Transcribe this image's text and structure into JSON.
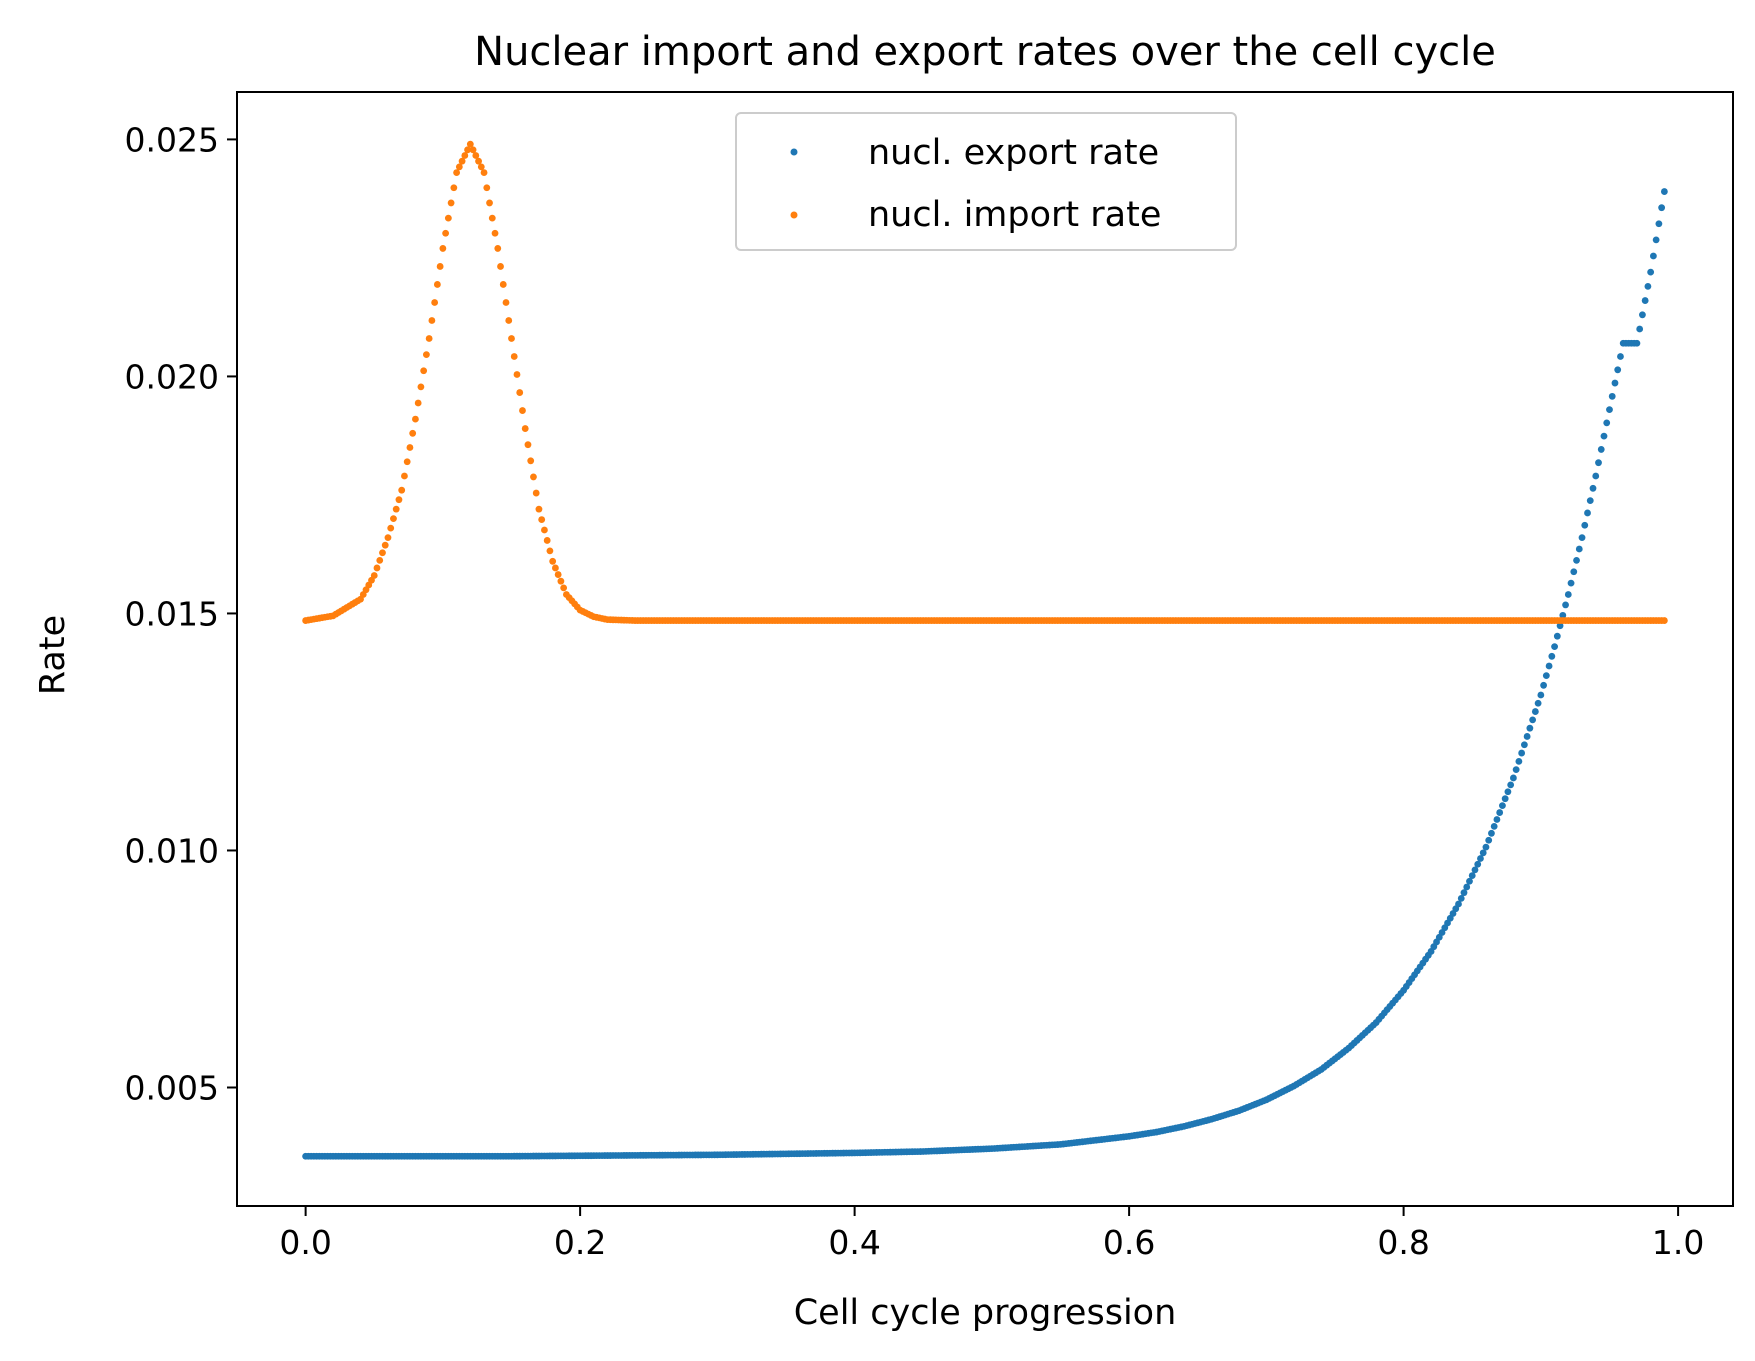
{
  "chart_data": {
    "type": "scatter",
    "title": "Nuclear import and export rates over the cell cycle",
    "xlabel": "Cell cycle progression",
    "ylabel": "Rate",
    "xlim": [
      -0.05,
      1.04
    ],
    "ylim": [
      0.0025,
      0.026
    ],
    "x_ticks": [
      "0.0",
      "0.2",
      "0.4",
      "0.6",
      "0.8",
      "1.0"
    ],
    "y_ticks": [
      "0.005",
      "0.010",
      "0.015",
      "0.020",
      "0.025"
    ],
    "legend_position": "upper-center",
    "grid": false,
    "series": [
      {
        "name": "nucl. export rate",
        "color": "#1f77b4",
        "x": [
          0.0,
          0.05,
          0.1,
          0.15,
          0.2,
          0.25,
          0.3,
          0.35,
          0.4,
          0.45,
          0.5,
          0.55,
          0.6,
          0.62,
          0.64,
          0.66,
          0.68,
          0.7,
          0.72,
          0.74,
          0.76,
          0.78,
          0.8,
          0.82,
          0.84,
          0.86,
          0.88,
          0.9,
          0.91,
          0.92,
          0.93,
          0.94,
          0.95,
          0.96,
          0.97,
          0.98,
          0.99
        ],
        "y": [
          0.00355,
          0.00355,
          0.00355,
          0.00355,
          0.00356,
          0.00357,
          0.00358,
          0.0036,
          0.00362,
          0.00365,
          0.00371,
          0.0038,
          0.00397,
          0.00406,
          0.00418,
          0.00433,
          0.00451,
          0.00474,
          0.00503,
          0.00538,
          0.00583,
          0.00637,
          0.00705,
          0.00787,
          0.00887,
          0.01007,
          0.01153,
          0.01328,
          0.0143,
          0.0154,
          0.0166,
          0.0179,
          0.0193,
          0.0207,
          0.0207,
          0.0222,
          0.0239
        ]
      },
      {
        "name": "nucl. import rate",
        "color": "#ff7f0e",
        "x": [
          0.0,
          0.02,
          0.04,
          0.05,
          0.06,
          0.07,
          0.08,
          0.09,
          0.1,
          0.11,
          0.12,
          0.13,
          0.14,
          0.15,
          0.16,
          0.17,
          0.18,
          0.19,
          0.2,
          0.21,
          0.22,
          0.24,
          0.3,
          0.4,
          0.5,
          0.6,
          0.7,
          0.8,
          0.9,
          0.99
        ],
        "y": [
          0.01485,
          0.01495,
          0.0153,
          0.0158,
          0.0166,
          0.0176,
          0.0191,
          0.0208,
          0.0227,
          0.0243,
          0.0249,
          0.0243,
          0.0227,
          0.0208,
          0.0189,
          0.0172,
          0.0161,
          0.0154,
          0.01507,
          0.01493,
          0.01487,
          0.01485,
          0.01485,
          0.01485,
          0.01485,
          0.01485,
          0.01485,
          0.01485,
          0.01485,
          0.01485
        ]
      }
    ]
  }
}
